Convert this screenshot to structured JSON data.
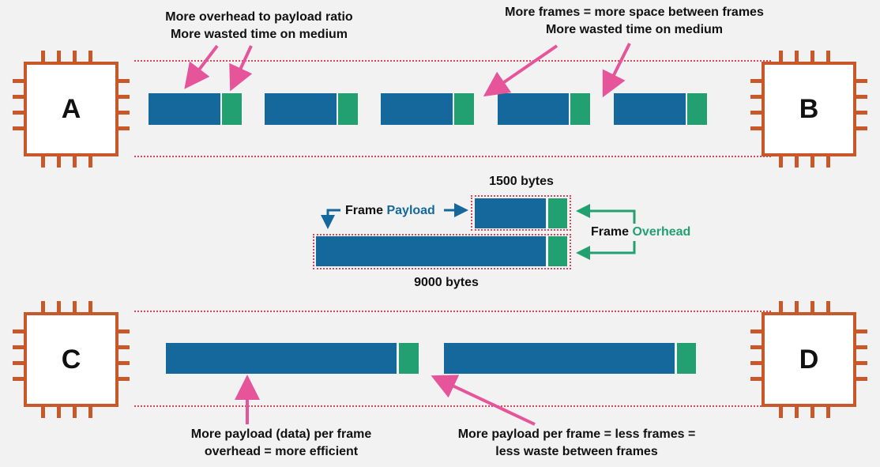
{
  "colors": {
    "background": "#f2f2f2",
    "chip": "#c8582a",
    "payload": "#15689c",
    "overhead": "#22a071",
    "arrow_pink": "#e6559a",
    "dotted_line": "#d6485a"
  },
  "chips": {
    "a": "A",
    "b": "B",
    "c": "C",
    "d": "D"
  },
  "top_annotations": {
    "left_line1": "More overhead to payload ratio",
    "left_line2": "More wasted time on medium",
    "right_line1": "More frames = more space between frames",
    "right_line2": "More wasted time on medium"
  },
  "legend": {
    "small_frame_size": "1500 bytes",
    "large_frame_size": "9000 bytes",
    "payload_prefix": "Frame ",
    "payload_word": "Payload",
    "overhead_prefix": "Frame ",
    "overhead_word": "Overhead"
  },
  "bottom_annotations": {
    "left_line1": "More payload (data) per frame",
    "left_line2": "overhead = more efficient",
    "right_line1": "More payload per frame = less frames =",
    "right_line2": "less waste between frames"
  }
}
